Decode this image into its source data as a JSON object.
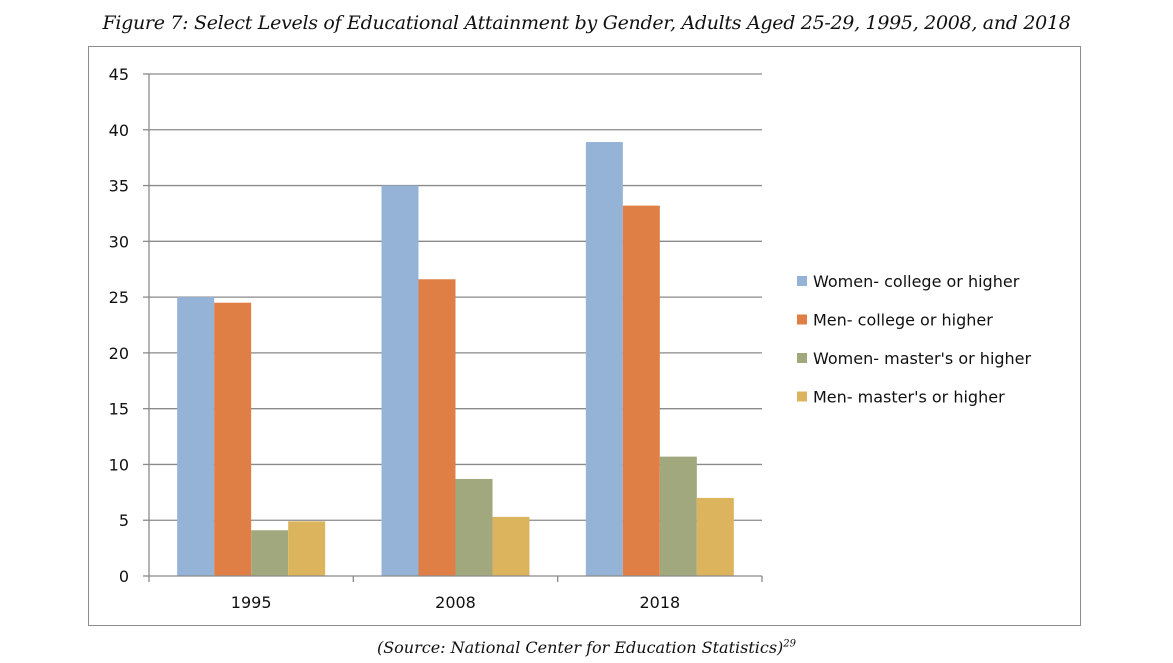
{
  "figure": {
    "title": "Figure 7: Select Levels of Educational Attainment by Gender, Adults Aged 25-29, 1995, 2008, and 2018",
    "source": "(Source: National Center for Education Statistics)",
    "footnote": "29"
  },
  "chart_data": {
    "type": "bar",
    "title": "",
    "xlabel": "",
    "ylabel": "",
    "categories": [
      "1995",
      "2008",
      "2018"
    ],
    "series": [
      {
        "name": "Women- college or higher",
        "values": [
          25,
          35,
          38.9
        ],
        "color": "#95B3D7"
      },
      {
        "name": "Men- college or higher",
        "values": [
          24.5,
          26.6,
          33.2
        ],
        "color": "#E07F45"
      },
      {
        "name": "Women- master's or higher",
        "values": [
          4.1,
          8.7,
          10.7
        ],
        "color": "#A2A87D"
      },
      {
        "name": "Men- master's or higher",
        "values": [
          4.9,
          5.3,
          7.0
        ],
        "color": "#DDB45E"
      }
    ],
    "ylim": [
      0,
      45
    ],
    "yticks": [
      0,
      5,
      10,
      15,
      20,
      25,
      30,
      35,
      40,
      45
    ],
    "grid": true,
    "legend_position": "right"
  }
}
